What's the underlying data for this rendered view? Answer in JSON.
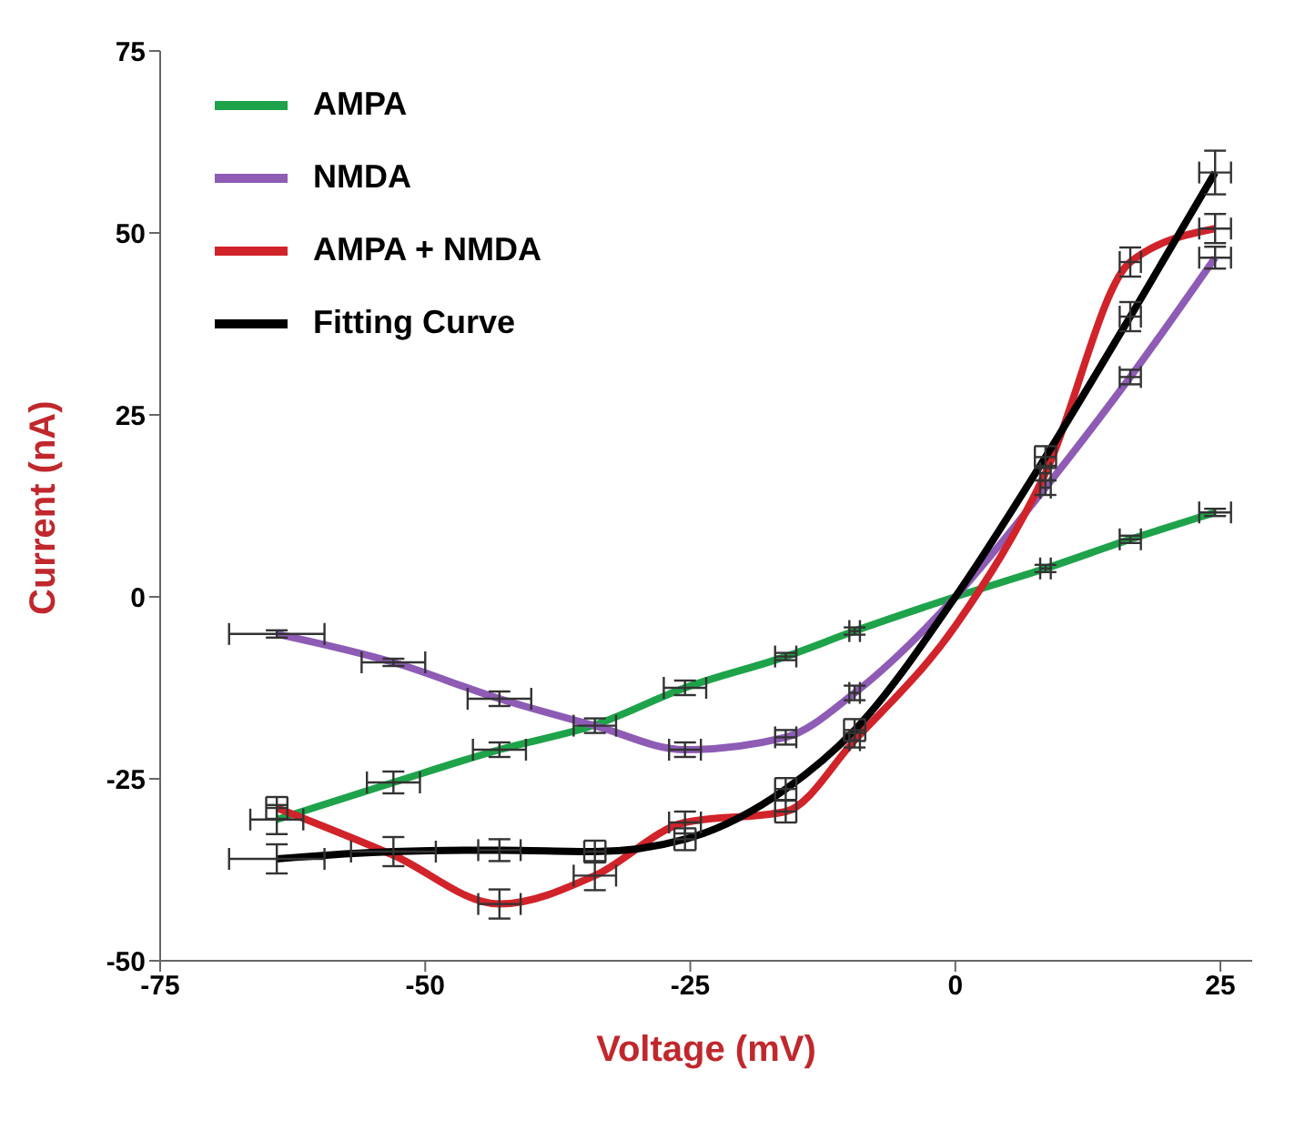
{
  "chart_data": {
    "type": "line",
    "xlabel": "Voltage (mV)",
    "ylabel": "Current (nA)",
    "x": [
      -64,
      -53,
      -43,
      -34,
      -25.5,
      -16,
      -9.5,
      0,
      8.5,
      16.5,
      24.5
    ],
    "series": [
      {
        "name": "AMPA",
        "color": "#1ea34a",
        "values": [
          -30.6,
          -25.5,
          -21,
          -17.6,
          -12.5,
          -8.2,
          -4.7,
          0,
          3.9,
          7.9,
          11.6
        ],
        "errors": [
          2,
          1.5,
          1,
          null,
          1,
          0.5,
          0.5,
          null,
          0.5,
          0.5,
          0.5
        ],
        "xerrors": [
          2.5,
          2.5,
          2.5,
          null,
          2,
          1,
          0.5,
          null,
          0.5,
          1,
          1.5
        ]
      },
      {
        "name": "NMDA",
        "color": "#8e5bb5",
        "values": [
          -5.1,
          -9,
          -14,
          -17.7,
          -21,
          -19.3,
          -13.2,
          0,
          15,
          30.2,
          46.6
        ],
        "errors": [
          0.5,
          0.5,
          1,
          1,
          1,
          1,
          1,
          null,
          1,
          1,
          1.5
        ],
        "xerrors": [
          4.5,
          3,
          3,
          2,
          1.5,
          1,
          0.5,
          null,
          0.5,
          1,
          1.5
        ]
      },
      {
        "name": "AMPA + NMDA",
        "color": "#d1232a",
        "values": [
          -29,
          -35.5,
          -42.2,
          -38.3,
          -31,
          -29.5,
          -19.7,
          -4,
          17,
          46,
          50.6
        ],
        "errors": [
          1.5,
          null,
          2,
          2,
          1.5,
          1.5,
          1,
          null,
          1,
          2,
          2
        ],
        "xerrors": [
          1,
          null,
          2,
          2,
          1.5,
          1,
          0.5,
          null,
          0.5,
          1,
          1.5
        ]
      },
      {
        "name": "Fitting Curve",
        "color": "#000000",
        "values": [
          -36,
          -35,
          -34.8,
          -35,
          -33.3,
          -26.4,
          -18.3,
          0,
          19.2,
          38.5,
          58.3
        ],
        "errors": [
          2,
          2,
          1.5,
          1.5,
          1.5,
          1.5,
          1.5,
          null,
          1.5,
          2,
          3
        ],
        "xerrors": [
          4.5,
          4,
          2,
          1,
          1,
          1,
          1,
          null,
          1,
          1,
          1.5
        ]
      }
    ],
    "xlim": [
      -75,
      28
    ],
    "xticks": [
      -75,
      -50,
      -25,
      0,
      25
    ],
    "ylim": [
      -50,
      75
    ],
    "yticks": [
      -50,
      -25,
      0,
      25,
      50,
      75
    ],
    "grid": false,
    "legend": "top left",
    "marker": "none",
    "line_style": "solid"
  }
}
